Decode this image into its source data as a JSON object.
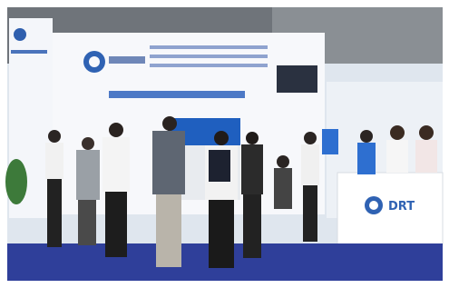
{
  "scene": {
    "counter_logo": "DRT"
  }
}
